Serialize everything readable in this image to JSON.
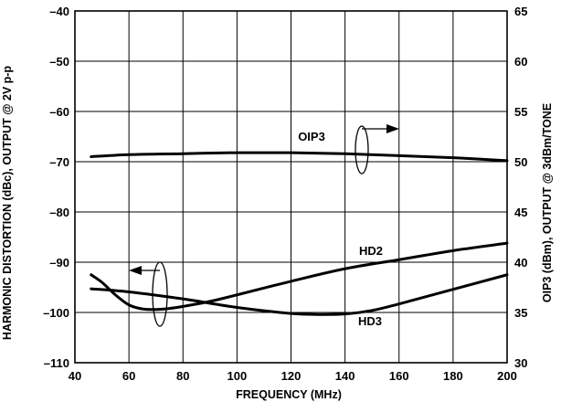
{
  "chart_data": {
    "type": "line",
    "xlabel": "FREQUENCY (MHz)",
    "ylabel_left": "HARMONIC DISTORTION (dBc), OUTPUT @ 2V p-p",
    "ylabel_right": "OIP3 (dBm), OUTPUT @ 3dBm/TONE",
    "xlim": [
      40,
      200
    ],
    "ylim_left": [
      -110,
      -40
    ],
    "ylim_right": [
      30,
      65
    ],
    "x_ticks": [
      "40",
      "60",
      "80",
      "100",
      "120",
      "140",
      "160",
      "180",
      "200"
    ],
    "y_left_ticks": [
      "–40",
      "–50",
      "–60",
      "–70",
      "–80",
      "–90",
      "–100",
      "–110"
    ],
    "y_right_ticks": [
      "65",
      "60",
      "55",
      "50",
      "45",
      "40",
      "35",
      "30"
    ],
    "grid": true,
    "series": [
      {
        "name": "OIP3",
        "axis": "right",
        "x": [
          46,
          60,
          80,
          100,
          120,
          140,
          160,
          180,
          200
        ],
        "y": [
          50.5,
          50.7,
          50.8,
          50.9,
          50.9,
          50.8,
          50.6,
          50.4,
          50.1
        ]
      },
      {
        "name": "HD2",
        "axis": "left",
        "x": [
          46,
          50,
          55,
          60,
          65,
          70,
          75,
          80,
          90,
          100,
          120,
          140,
          160,
          180,
          200
        ],
        "y": [
          -92.5,
          -94.0,
          -96.5,
          -98.5,
          -99.3,
          -99.4,
          -99.2,
          -98.8,
          -97.8,
          -96.5,
          -93.8,
          -91.3,
          -89.5,
          -87.7,
          -86.2
        ]
      },
      {
        "name": "HD3",
        "axis": "left",
        "x": [
          46,
          60,
          80,
          100,
          120,
          130,
          140,
          150,
          160,
          180,
          200
        ],
        "y": [
          -95.3,
          -95.9,
          -97.3,
          -99.0,
          -100.2,
          -100.4,
          -100.3,
          -99.6,
          -98.3,
          -95.4,
          -92.5
        ]
      }
    ]
  }
}
